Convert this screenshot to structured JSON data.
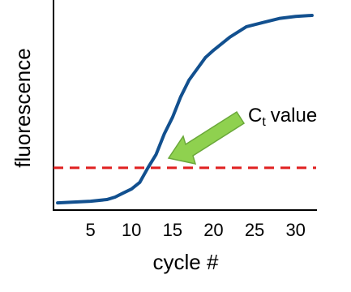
{
  "chart_data": {
    "type": "line",
    "xlabel": "cycle #",
    "ylabel": "fluorescence",
    "x": [
      1,
      3,
      5,
      7,
      8,
      9,
      10,
      11,
      12,
      13,
      14,
      15,
      16,
      17,
      18,
      19,
      20,
      22,
      24,
      26,
      28,
      30,
      32
    ],
    "series": [
      {
        "color": "#12508f",
        "values": [
          3.5,
          3.9,
          4.3,
          5.1,
          6.3,
          8.3,
          10.2,
          13.4,
          20.5,
          27,
          37,
          45,
          55,
          63,
          68.5,
          74,
          77.6,
          84,
          89,
          91,
          93,
          94,
          94.5
        ]
      }
    ],
    "xlim": [
      0.5,
      32.5
    ],
    "ylim": [
      0,
      100
    ],
    "xticks": [
      5,
      10,
      15,
      20,
      25,
      30
    ],
    "grid": false,
    "threshold": {
      "value": 20.5,
      "color": "#e02020"
    },
    "annotation": {
      "main": "C",
      "sub": "t",
      "rest": "value"
    }
  }
}
